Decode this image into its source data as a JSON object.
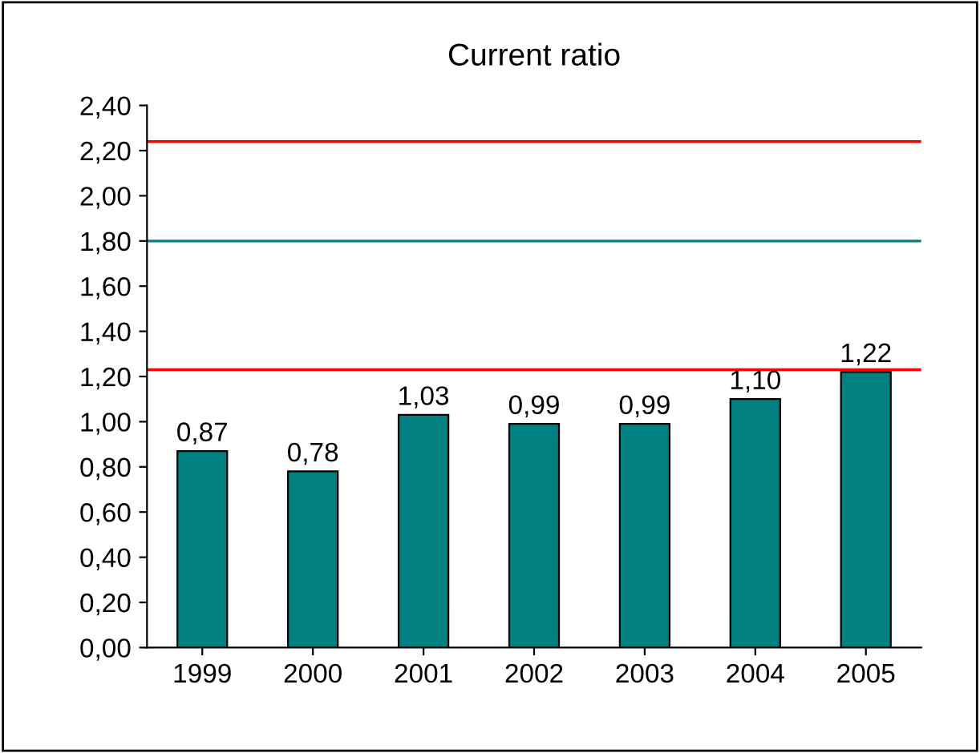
{
  "chart_data": {
    "type": "bar",
    "title": "Current ratio",
    "categories": [
      "1999",
      "2000",
      "2001",
      "2002",
      "2003",
      "2004",
      "2005"
    ],
    "values": [
      0.87,
      0.78,
      1.03,
      0.99,
      0.99,
      1.1,
      1.22
    ],
    "value_labels": [
      "0,87",
      "0,78",
      "1,03",
      "0,99",
      "0,99",
      "1,10",
      "1,22"
    ],
    "color": "#008080",
    "ylim": [
      0,
      2.4
    ],
    "yticks": [
      {
        "value": 0,
        "label": "0,00"
      },
      {
        "value": 0.2,
        "label": "0,20"
      },
      {
        "value": 0.4,
        "label": "0,40"
      },
      {
        "value": 0.6,
        "label": "0,60"
      },
      {
        "value": 0.8,
        "label": "0,80"
      },
      {
        "value": 1.0,
        "label": "1,00"
      },
      {
        "value": 1.2,
        "label": "1,20"
      },
      {
        "value": 1.4,
        "label": "1,40"
      },
      {
        "value": 1.6,
        "label": "1,60"
      },
      {
        "value": 1.8,
        "label": "1,80"
      },
      {
        "value": 2.0,
        "label": "2,00"
      },
      {
        "value": 2.2,
        "label": "2,20"
      },
      {
        "value": 2.4,
        "label": "2,40"
      }
    ],
    "ref_lines": [
      {
        "axis": "y",
        "value": 2.24,
        "color": "#ff0000"
      },
      {
        "axis": "y",
        "value": 1.8,
        "color": "#008080"
      },
      {
        "axis": "y",
        "value": 1.23,
        "color": "#ff0000"
      }
    ],
    "grid": false
  }
}
